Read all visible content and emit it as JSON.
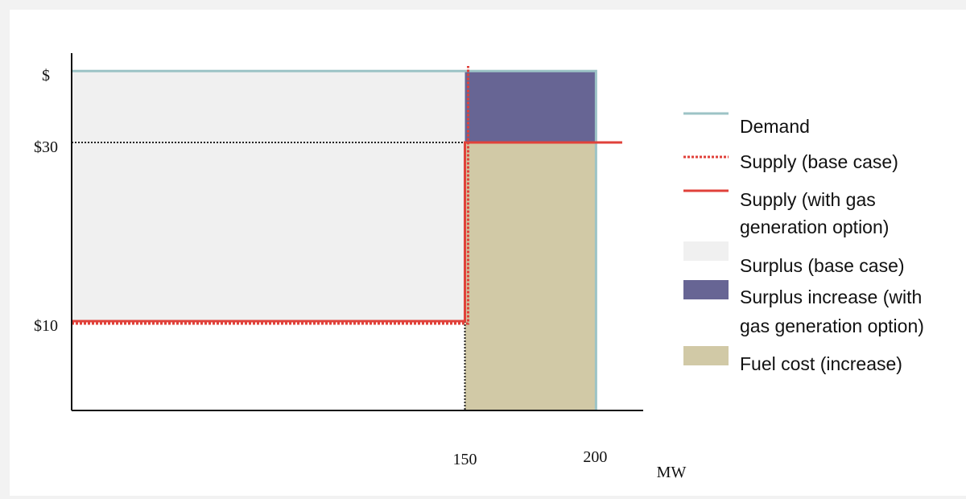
{
  "chart_data": {
    "type": "area",
    "y_axis_symbol": "$",
    "x_unit": "MW",
    "y_ticks": [
      {
        "value": 30,
        "label": "$30"
      },
      {
        "value": 10,
        "label": "$10"
      }
    ],
    "x_ticks": [
      {
        "value": 150,
        "label": "150"
      },
      {
        "value": 200,
        "label": "200"
      }
    ],
    "xlim": [
      0,
      218
    ],
    "ylim": [
      0,
      40
    ],
    "demand": {
      "price": 38,
      "quantity": 200
    },
    "supply_base_case": {
      "low_price": 10,
      "step_quantity": 150
    },
    "supply_gas_option": {
      "low_price": 10,
      "high_price": 30,
      "step_quantity": 150,
      "end_quantity": 210
    },
    "regions": {
      "surplus_base_case": {
        "x": [
          0,
          150
        ],
        "y": [
          10,
          38
        ]
      },
      "surplus_increase": {
        "x": [
          150,
          200
        ],
        "y": [
          30,
          38
        ]
      },
      "fuel_cost_increase": {
        "x": [
          150,
          200
        ],
        "y": [
          0,
          30
        ]
      }
    },
    "legend": [
      {
        "key": "demand",
        "label_lines": [
          "Demand"
        ]
      },
      {
        "key": "supply_base",
        "label_lines": [
          "Supply (base case)"
        ]
      },
      {
        "key": "supply_gas",
        "label_lines": [
          "Supply (with gas",
          "generation option)"
        ]
      },
      {
        "key": "surplus_base",
        "label_lines": [
          "Surplus (base case)"
        ]
      },
      {
        "key": "surplus_increase",
        "label_lines": [
          "Surplus increase (with",
          "gas generation option)"
        ]
      },
      {
        "key": "fuel_cost",
        "label_lines": [
          "Fuel cost (increase)"
        ]
      }
    ],
    "legend_position": "right",
    "grid": false
  },
  "colors": {
    "demand": "#9cc3c6",
    "supply": "#e0413a",
    "surplus_base": "#f0f0f0",
    "surplus_increase": "#676594",
    "fuel_cost": "#d1c9a6",
    "axis": "#111111",
    "guide": "#222222"
  }
}
